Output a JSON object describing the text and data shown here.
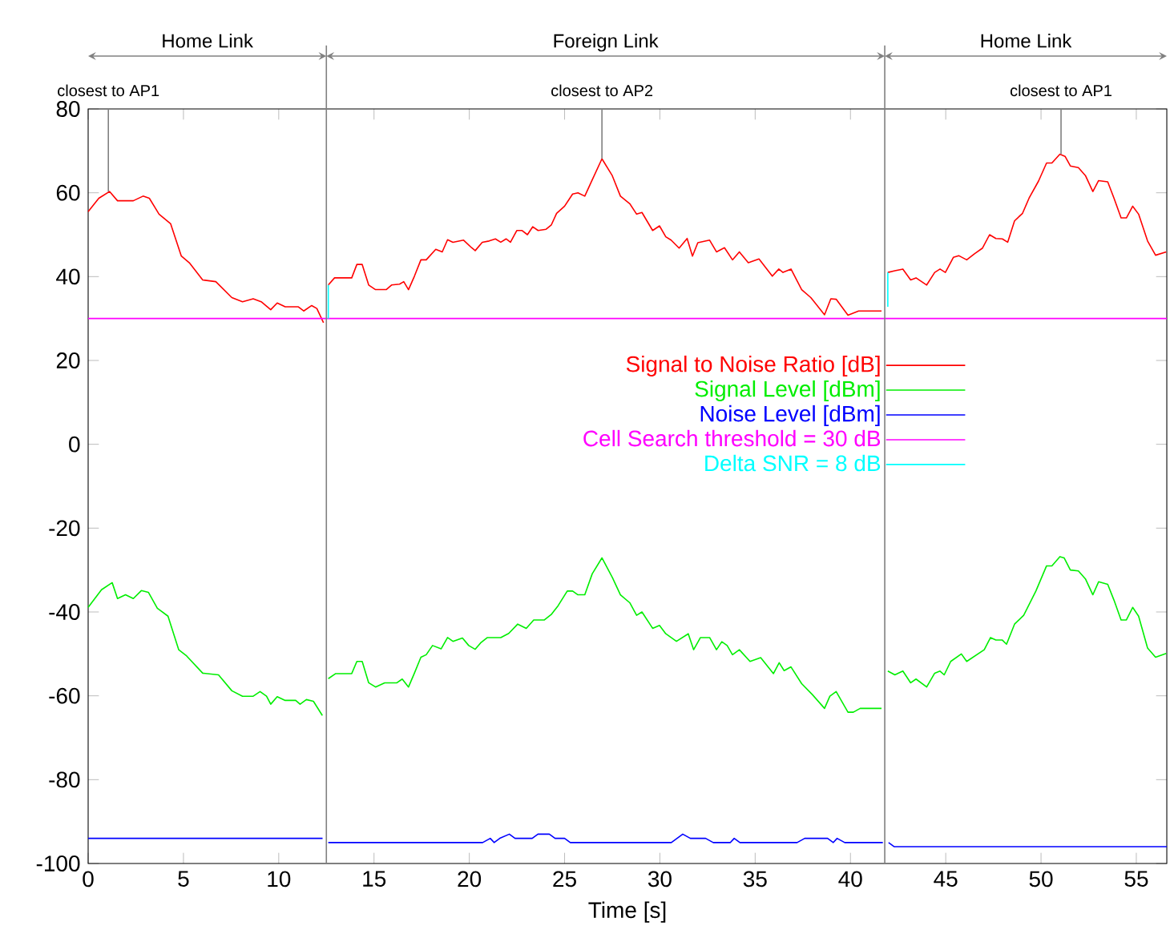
{
  "chart_data": {
    "type": "line",
    "xlabel": "Time [s]",
    "xlim": [
      0,
      56.6
    ],
    "ylim": [
      -100,
      80
    ],
    "xticks": [
      0,
      5,
      10,
      15,
      20,
      25,
      30,
      35,
      40,
      45,
      50,
      55
    ],
    "yticks": [
      -100,
      -80,
      -60,
      -40,
      -20,
      0,
      20,
      40,
      60,
      80
    ],
    "legend": "right",
    "series": [
      {
        "name": "Signal to Noise Ratio [dB]",
        "color": "#ff0000",
        "x": [
          0,
          0.56,
          1.12,
          1.54,
          2.37,
          2.88,
          3.21,
          3.72,
          4.33,
          4.89,
          5.31,
          6.01,
          6.7,
          7.54,
          8.1,
          8.66,
          9.08,
          9.58,
          9.92,
          10.34,
          11.03,
          11.31,
          11.73,
          12.0,
          12.35,
          null,
          12.6,
          12.93,
          13.83,
          14.1,
          14.38,
          14.72,
          15.08,
          15.64,
          15.92,
          16.34,
          16.56,
          16.81,
          17.12,
          17.46,
          17.74,
          18.24,
          18.58,
          18.86,
          19.14,
          19.7,
          20.12,
          20.31,
          20.68,
          21.04,
          21.37,
          21.65,
          21.93,
          22.16,
          22.49,
          22.77,
          23.05,
          23.33,
          23.61,
          24.03,
          24.3,
          24.58,
          25.0,
          25.42,
          25.7,
          26.06,
          26.4,
          26.96,
          27.5,
          27.93,
          28.42,
          28.78,
          29.06,
          29.62,
          29.98,
          30.31,
          30.59,
          31.01,
          31.43,
          31.71,
          31.99,
          32.61,
          32.97,
          33.39,
          33.81,
          34.17,
          34.64,
          35.2,
          35.9,
          36.24,
          36.46,
          36.88,
          37.44,
          37.92,
          38.64,
          38.97,
          39.25,
          39.87,
          40.43,
          41.63,
          null,
          41.96,
          42.33,
          42.75,
          43.16,
          43.44,
          44.0,
          44.42,
          44.7,
          44.98,
          45.4,
          45.68,
          46.1,
          46.52,
          46.93,
          47.3,
          47.63,
          47.97,
          48.25,
          48.61,
          49.03,
          49.37,
          49.87,
          50.29,
          50.57,
          50.99,
          51.26,
          51.54,
          51.96,
          52.33,
          52.72,
          53.02,
          53.5,
          53.83,
          54.2,
          54.48,
          54.81,
          55.12,
          55.59,
          56.01,
          56.57
        ],
        "values": [
          55.5,
          58.7,
          60.3,
          58.1,
          58.1,
          59.2,
          58.7,
          54.9,
          52.6,
          44.9,
          43.3,
          39.2,
          38.8,
          35.0,
          34.0,
          34.7,
          34.0,
          32.1,
          33.7,
          32.8,
          32.8,
          31.8,
          33.1,
          32.4,
          29.0,
          null,
          38.0,
          39.7,
          39.7,
          42.9,
          42.9,
          38.0,
          36.9,
          36.9,
          38.0,
          38.2,
          38.8,
          36.9,
          40.1,
          44.0,
          44.0,
          46.5,
          45.9,
          48.8,
          48.2,
          48.7,
          46.9,
          46.2,
          48.2,
          48.5,
          49.0,
          48.2,
          49.0,
          48.2,
          51.0,
          51.0,
          50.0,
          51.9,
          51.0,
          51.3,
          52.3,
          55.1,
          56.8,
          59.7,
          60.0,
          59.2,
          62.6,
          68.1,
          64.1,
          59.2,
          57.4,
          54.9,
          55.3,
          51.0,
          52.1,
          49.5,
          48.7,
          46.8,
          49.1,
          44.9,
          48.1,
          48.7,
          45.9,
          46.9,
          44.0,
          45.9,
          43.3,
          44.2,
          40.1,
          41.8,
          41.0,
          41.8,
          36.9,
          35.0,
          30.9,
          34.7,
          34.6,
          30.8,
          31.8,
          31.8,
          null,
          41.0,
          41.4,
          41.8,
          39.2,
          39.7,
          38.0,
          41.0,
          41.8,
          41.0,
          44.6,
          45.0,
          44.0,
          45.5,
          46.8,
          50.0,
          49.1,
          49.0,
          48.2,
          53.3,
          55.1,
          58.7,
          62.8,
          67.1,
          67.1,
          69.2,
          68.7,
          66.4,
          66.0,
          64.1,
          60.3,
          62.9,
          62.6,
          58.7,
          54.0,
          54.0,
          56.8,
          54.9,
          48.5,
          45.1,
          45.9
        ]
      },
      {
        "name": "Signal Level [dBm]",
        "color": "#00ee00",
        "x": [
          0,
          0.7,
          1.26,
          1.54,
          1.96,
          2.37,
          2.79,
          3.16,
          3.63,
          4.19,
          4.75,
          5.17,
          6.01,
          6.84,
          7.54,
          8.1,
          8.66,
          9.02,
          9.36,
          9.58,
          9.92,
          10.34,
          10.89,
          11.12,
          11.45,
          11.82,
          12.29,
          null,
          12.6,
          12.99,
          13.83,
          14.1,
          14.38,
          14.72,
          15.08,
          15.56,
          16.2,
          16.48,
          16.81,
          17.12,
          17.46,
          17.74,
          18.07,
          18.52,
          18.86,
          19.14,
          19.64,
          19.97,
          20.31,
          20.59,
          20.95,
          21.65,
          22.07,
          22.54,
          22.99,
          23.38,
          23.94,
          24.3,
          24.66,
          25.14,
          25.42,
          25.7,
          26.06,
          26.45,
          26.96,
          27.51,
          27.93,
          28.42,
          28.78,
          29.06,
          29.62,
          29.98,
          30.31,
          30.87,
          31.49,
          31.77,
          32.13,
          32.61,
          32.97,
          33.25,
          33.53,
          33.81,
          34.17,
          34.73,
          35.29,
          35.96,
          36.26,
          36.52,
          36.88,
          37.44,
          38.0,
          38.64,
          38.92,
          39.25,
          39.87,
          40.15,
          40.51,
          41.63,
          null,
          41.96,
          42.33,
          42.75,
          43.16,
          43.44,
          44.0,
          44.42,
          44.7,
          44.92,
          45.26,
          45.82,
          46.1,
          47.02,
          47.35,
          47.63,
          47.97,
          48.19,
          48.61,
          49.09,
          49.73,
          50.29,
          50.57,
          50.99,
          51.21,
          51.54,
          51.96,
          52.33,
          52.72,
          53.02,
          53.5,
          53.83,
          54.2,
          54.48,
          54.81,
          55.12,
          55.59,
          56.01,
          56.57
        ],
        "values": [
          -38.9,
          -34.7,
          -33.0,
          -36.8,
          -35.9,
          -36.8,
          -34.9,
          -35.3,
          -39.1,
          -41.0,
          -49.0,
          -50.5,
          -54.6,
          -55.0,
          -58.8,
          -60.1,
          -60.1,
          -59.0,
          -60.1,
          -62.0,
          -60.2,
          -61.1,
          -61.1,
          -62.0,
          -60.9,
          -61.3,
          -64.7,
          null,
          -55.9,
          -54.7,
          -54.7,
          -51.8,
          -51.8,
          -56.9,
          -57.9,
          -56.9,
          -56.9,
          -56.0,
          -57.9,
          -54.6,
          -50.8,
          -50.2,
          -48.0,
          -48.8,
          -46.1,
          -47.0,
          -46.2,
          -48.0,
          -48.9,
          -47.4,
          -46.1,
          -46.1,
          -45.1,
          -42.9,
          -43.9,
          -41.9,
          -41.9,
          -40.6,
          -38.5,
          -35.0,
          -35.0,
          -35.9,
          -35.9,
          -30.9,
          -27.1,
          -31.8,
          -35.9,
          -37.8,
          -40.8,
          -40.0,
          -43.9,
          -43.2,
          -45.2,
          -47.0,
          -45.2,
          -49.0,
          -46.1,
          -46.1,
          -49.0,
          -47.1,
          -48.0,
          -50.2,
          -49.0,
          -51.8,
          -50.9,
          -54.7,
          -52.1,
          -54.0,
          -53.1,
          -57.1,
          -59.7,
          -63.0,
          -60.1,
          -59.0,
          -63.9,
          -63.9,
          -63.0,
          -63.0,
          null,
          -54.1,
          -55.0,
          -54.1,
          -56.9,
          -56.0,
          -57.9,
          -54.6,
          -54.1,
          -55.0,
          -51.8,
          -50.0,
          -51.8,
          -49.0,
          -46.1,
          -46.7,
          -46.7,
          -47.7,
          -42.9,
          -40.8,
          -35.0,
          -29.0,
          -29.0,
          -26.8,
          -27.1,
          -30.0,
          -30.2,
          -32.1,
          -35.9,
          -32.8,
          -33.4,
          -37.2,
          -41.9,
          -41.9,
          -38.9,
          -41.0,
          -48.6,
          -50.8,
          -49.9
        ]
      },
      {
        "name": "Noise Level [dBm]",
        "color": "#0000ff",
        "x": [
          0,
          12.3,
          null,
          12.6,
          20.7,
          21.1,
          21.3,
          21.6,
          22.1,
          22.4,
          23.3,
          23.6,
          24.2,
          24.5,
          25.0,
          25.3,
          30.6,
          31.2,
          31.6,
          32.4,
          32.8,
          33.7,
          33.9,
          34.2,
          37.2,
          37.6,
          38.8,
          39.1,
          39.3,
          39.7,
          41.7,
          null,
          42.0,
          42.3,
          56.6
        ],
        "values": [
          -94,
          -94,
          null,
          -95,
          -95,
          -94,
          -95,
          -94,
          -93,
          -94,
          -94,
          -93,
          -93,
          -94,
          -94,
          -95,
          -95,
          -93,
          -94,
          -94,
          -95,
          -95,
          -94,
          -95,
          -95,
          -94,
          -94,
          -95,
          -94,
          -95,
          -95,
          null,
          -95,
          -96,
          -96
        ]
      },
      {
        "name": "Cell Search threshold = 30 dB",
        "color": "#ff00ff",
        "x": [
          0,
          56.6
        ],
        "values": [
          30,
          30
        ]
      },
      {
        "name": "Delta SNR = 8 dB",
        "color": "#00ffff",
        "x": [
          12.6,
          12.6,
          null,
          41.96,
          41.96
        ],
        "values": [
          30,
          38,
          null,
          32.8,
          41
        ]
      }
    ],
    "ref_lines": [
      {
        "axis": "x",
        "value": 12.5,
        "color": "#808080"
      },
      {
        "axis": "x",
        "value": 41.8,
        "color": "#808080"
      }
    ],
    "annotations": [
      "Home Link",
      "Foreign Link",
      "Home Link",
      {
        "text": "closest to AP1",
        "x": 1.06,
        "y": 60.3
      },
      {
        "text": "closest to AP2",
        "x": 26.96,
        "y": 68.1
      },
      {
        "text": "closest to AP1",
        "x": 51.05,
        "y": 69.2
      }
    ]
  }
}
